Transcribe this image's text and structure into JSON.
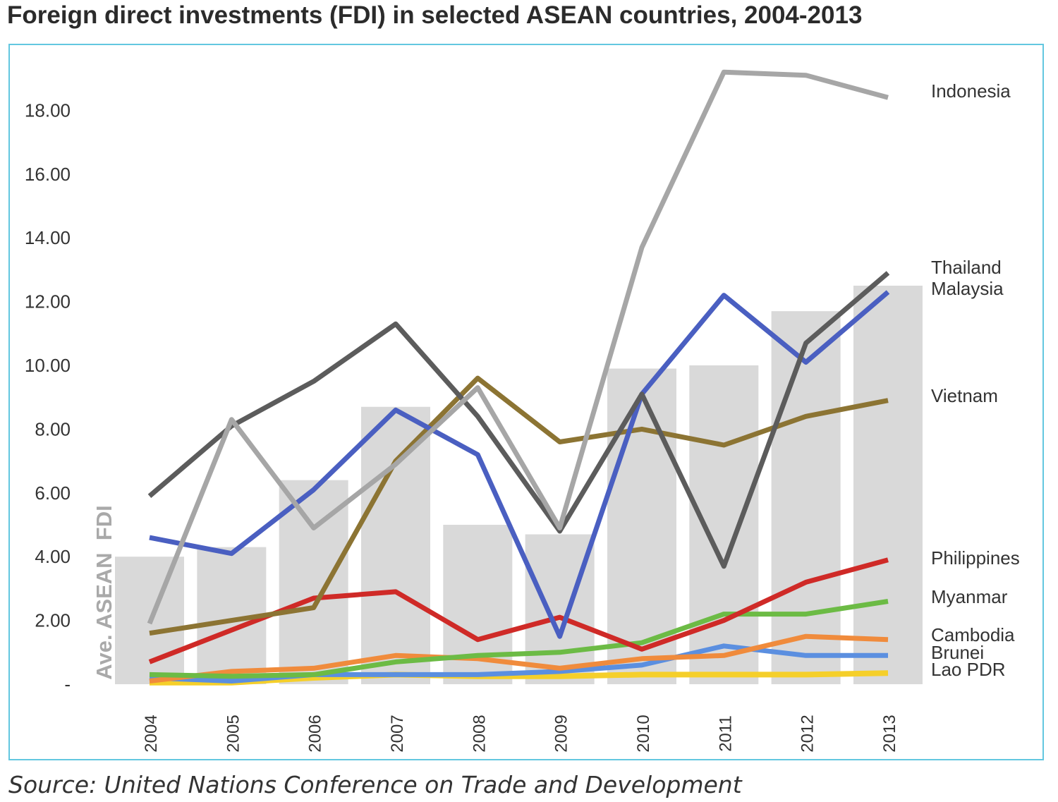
{
  "title": "Foreign direct investments (FDI) in selected ASEAN countries, 2004-2013",
  "source": "Source: United Nations Conference on Trade and Development",
  "chart_data": {
    "type": "line",
    "categories": [
      "2004",
      "2005",
      "2006",
      "2007",
      "2008",
      "2009",
      "2010",
      "2011",
      "2012",
      "2013"
    ],
    "y_ticks": [
      "-",
      "2.00",
      "4.00",
      "6.00",
      "8.00",
      "10.00",
      "12.00",
      "14.00",
      "16.00",
      "18.00"
    ],
    "ylim": [
      0,
      19.5
    ],
    "grid": false,
    "legend": "right (direct labels)",
    "bars": {
      "name": "Ave. ASEAN  FDI",
      "color": "#d9d9d9",
      "values": [
        4.0,
        4.3,
        6.4,
        8.7,
        5.0,
        4.7,
        9.9,
        10.0,
        11.7,
        12.5
      ]
    },
    "series": [
      {
        "name": "Indonesia",
        "color": "#a6a6a6",
        "values": [
          1.9,
          8.3,
          4.9,
          6.9,
          9.3,
          4.9,
          13.7,
          19.2,
          19.1,
          18.4
        ]
      },
      {
        "name": "Thailand",
        "color": "#5c5c5c",
        "values": [
          5.9,
          8.1,
          9.5,
          11.3,
          8.4,
          4.8,
          9.1,
          3.7,
          10.7,
          12.9
        ]
      },
      {
        "name": "Malaysia",
        "color": "#4a5fc1",
        "values": [
          4.6,
          4.1,
          6.1,
          8.6,
          7.2,
          1.5,
          9.1,
          12.2,
          10.1,
          12.3
        ]
      },
      {
        "name": "Vietnam",
        "color": "#8c7433",
        "values": [
          1.6,
          2.0,
          2.4,
          7.0,
          9.6,
          7.6,
          8.0,
          7.5,
          8.4,
          8.9
        ]
      },
      {
        "name": "Philippines",
        "color": "#cf2a27",
        "values": [
          0.7,
          1.7,
          2.7,
          2.9,
          1.4,
          2.1,
          1.1,
          2.0,
          3.2,
          3.9
        ]
      },
      {
        "name": "Myanmar",
        "color": "#6cbb45",
        "values": [
          0.3,
          0.25,
          0.3,
          0.7,
          0.9,
          1.0,
          1.3,
          2.2,
          2.2,
          2.6
        ]
      },
      {
        "name": "Cambodia",
        "color": "#f08b3c",
        "values": [
          0.1,
          0.4,
          0.5,
          0.9,
          0.8,
          0.5,
          0.8,
          0.9,
          1.5,
          1.4
        ]
      },
      {
        "name": "Brunei",
        "color": "#5b8fe0",
        "values": [
          0.2,
          0.1,
          0.3,
          0.3,
          0.3,
          0.4,
          0.6,
          1.2,
          0.9,
          0.9
        ]
      },
      {
        "name": "Lao PDR",
        "color": "#f5cf2a",
        "values": [
          0.05,
          0.05,
          0.2,
          0.3,
          0.25,
          0.25,
          0.3,
          0.3,
          0.3,
          0.35
        ]
      }
    ]
  }
}
